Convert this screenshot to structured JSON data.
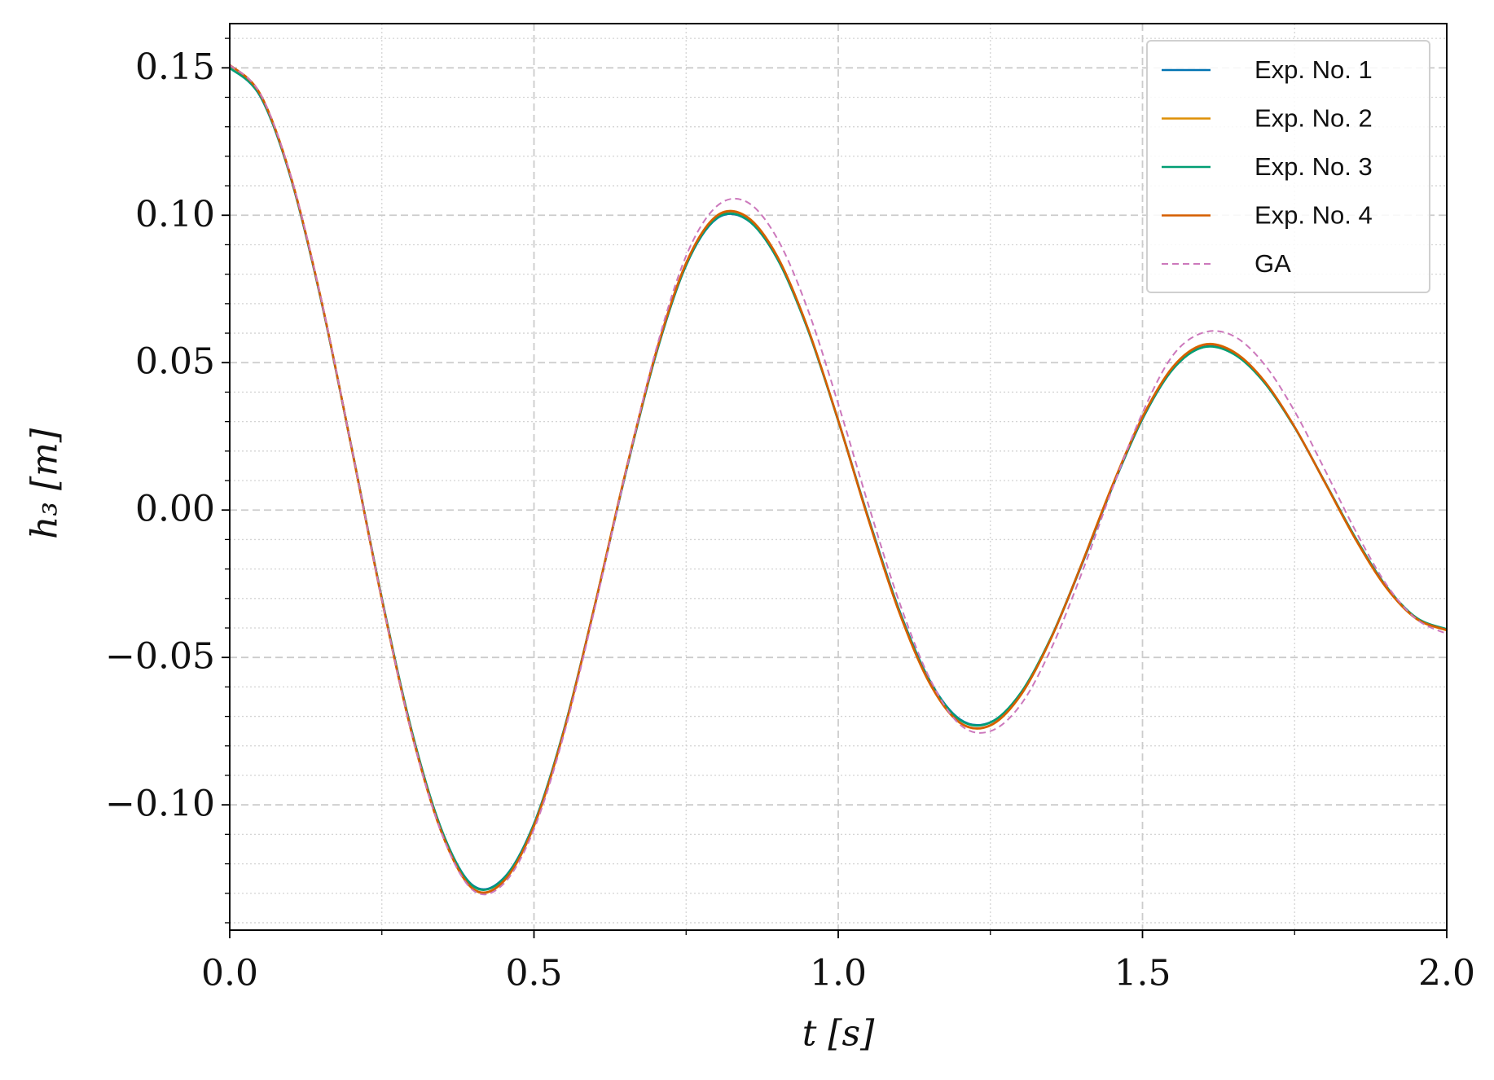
{
  "chart_data": {
    "type": "line",
    "x_label": "t [s]",
    "y_label": "h₃ [m]",
    "x": [
      0,
      0.05,
      0.1,
      0.15,
      0.2,
      0.25,
      0.3,
      0.35,
      0.4,
      0.45,
      0.5,
      0.55,
      0.6,
      0.65,
      0.7,
      0.75,
      0.8,
      0.85,
      0.9,
      0.95,
      1.0,
      1.05,
      1.1,
      1.15,
      1.2,
      1.25,
      1.3,
      1.35,
      1.4,
      1.45,
      1.5,
      1.55,
      1.6,
      1.65,
      1.7,
      1.75,
      1.8,
      1.85,
      1.9,
      1.95,
      2.0
    ],
    "series": [
      {
        "name": "Exp. No. 1",
        "color": "#0173b2",
        "dashed": false,
        "values": [
          0.15,
          0.1404,
          0.1129,
          0.0713,
          0.0214,
          -0.03,
          -0.0757,
          -0.1094,
          -0.1274,
          -0.1249,
          -0.1064,
          -0.074,
          -0.0324,
          0.0119,
          0.0524,
          0.083,
          0.0988,
          0.0985,
          0.0852,
          0.0613,
          0.0304,
          -0.0029,
          -0.0338,
          -0.0577,
          -0.071,
          -0.072,
          -0.0621,
          -0.0433,
          -0.0187,
          0.0075,
          0.0309,
          0.0478,
          0.0553,
          0.053,
          0.0434,
          0.0281,
          0.0094,
          -0.0095,
          -0.0258,
          -0.0366,
          -0.0405
        ]
      },
      {
        "name": "Exp. No. 2",
        "color": "#de8f05",
        "dashed": false,
        "values": [
          0.151,
          0.1412,
          0.1134,
          0.0716,
          0.0213,
          -0.0304,
          -0.0764,
          -0.1104,
          -0.1286,
          -0.126,
          -0.1072,
          -0.0744,
          -0.0322,
          0.0124,
          0.0531,
          0.0838,
          0.0998,
          0.0995,
          0.086,
          0.0617,
          0.0303,
          -0.0035,
          -0.0346,
          -0.0587,
          -0.0722,
          -0.0731,
          -0.0628,
          -0.0434,
          -0.0183,
          0.0081,
          0.0316,
          0.0486,
          0.0561,
          0.0537,
          0.0438,
          0.0282,
          0.0092,
          -0.0099,
          -0.0262,
          -0.0369,
          -0.0408
        ]
      },
      {
        "name": "Exp. No. 3",
        "color": "#029e73",
        "dashed": false,
        "values": [
          0.15,
          0.1405,
          0.113,
          0.0714,
          0.0215,
          -0.0299,
          -0.0756,
          -0.1095,
          -0.1276,
          -0.1251,
          -0.1065,
          -0.074,
          -0.0323,
          0.012,
          0.0525,
          0.0831,
          0.099,
          0.0986,
          0.0852,
          0.0612,
          0.0302,
          -0.0031,
          -0.034,
          -0.0579,
          -0.0712,
          -0.0721,
          -0.062,
          -0.0431,
          -0.0184,
          0.0077,
          0.031,
          0.0478,
          0.0552,
          0.0529,
          0.0433,
          0.028,
          0.0094,
          -0.0094,
          -0.0257,
          -0.0365,
          -0.0404
        ]
      },
      {
        "name": "Exp. No. 4",
        "color": "#d55e00",
        "dashed": false,
        "values": [
          0.151,
          0.1411,
          0.1133,
          0.0716,
          0.0214,
          -0.0303,
          -0.0763,
          -0.1103,
          -0.1285,
          -0.1259,
          -0.1071,
          -0.0744,
          -0.0323,
          0.0123,
          0.053,
          0.0837,
          0.0997,
          0.0994,
          0.0859,
          0.0617,
          0.0304,
          -0.0034,
          -0.0345,
          -0.0586,
          -0.0721,
          -0.073,
          -0.0627,
          -0.0434,
          -0.0184,
          0.008,
          0.0315,
          0.0485,
          0.056,
          0.0536,
          0.0438,
          0.0282,
          0.0093,
          -0.0098,
          -0.0261,
          -0.0368,
          -0.0407
        ]
      },
      {
        "name": "GA",
        "color": "#cc78bc",
        "dashed": true,
        "values": [
          0.151,
          0.1413,
          0.1136,
          0.0718,
          0.0215,
          -0.0303,
          -0.0765,
          -0.1106,
          -0.129,
          -0.1268,
          -0.1083,
          -0.0755,
          -0.0333,
          0.0121,
          0.054,
          0.0862,
          0.103,
          0.1045,
          0.092,
          0.068,
          0.036,
          0.0015,
          -0.031,
          -0.057,
          -0.0728,
          -0.075,
          -0.066,
          -0.047,
          -0.0215,
          0.007,
          0.033,
          0.0525,
          0.0602,
          0.059,
          0.0495,
          0.0335,
          0.0135,
          -0.007,
          -0.025,
          -0.037,
          -0.042
        ]
      }
    ],
    "xlim": [
      0,
      2
    ],
    "ylim": [
      -0.1425,
      0.165
    ],
    "xticks": [
      {
        "value": 0,
        "label": "0.0"
      },
      0.5,
      {
        "value": 1,
        "label": "1.0"
      },
      1.5,
      {
        "value": 2,
        "label": "2.0"
      }
    ],
    "yticks": [
      {
        "value": -0.1,
        "label": "−0.10"
      },
      {
        "value": -0.05,
        "label": "−0.05"
      },
      {
        "value": 0,
        "label": "0.00"
      },
      0.05,
      {
        "value": 0.1,
        "label": "0.10"
      },
      0.15
    ],
    "xminorticks": [
      0.25,
      0.75,
      1.25,
      1.75
    ],
    "yminorticks": [
      -0.14,
      -0.13,
      -0.12,
      -0.11,
      -0.09,
      -0.08,
      -0.07,
      -0.06,
      -0.04,
      -0.03,
      -0.02,
      -0.01,
      0.01,
      0.02,
      0.03,
      0.04,
      0.06,
      0.07,
      0.08,
      0.09,
      0.11,
      0.12,
      0.13,
      0.14,
      0.16
    ],
    "grid": true,
    "legend": "upper right"
  }
}
